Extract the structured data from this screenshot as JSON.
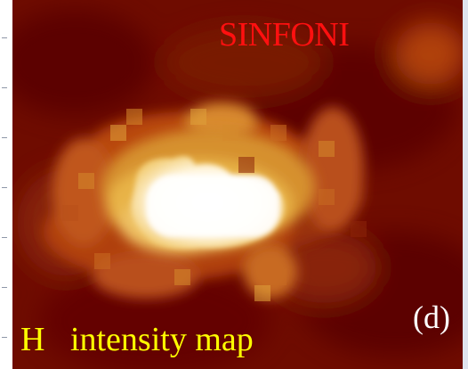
{
  "image": {
    "label_top": "SINFONI",
    "label_bottom_left": "H   intensity map",
    "panel_label": "(d)",
    "colors": {
      "label_top": "#ff1010",
      "label_bottom": "#ffff00",
      "panel_label": "#ffffff",
      "background_dark": "#5a0000",
      "mid": "#b8460e",
      "bright": "#e8b347",
      "core": "#ffffff"
    }
  }
}
